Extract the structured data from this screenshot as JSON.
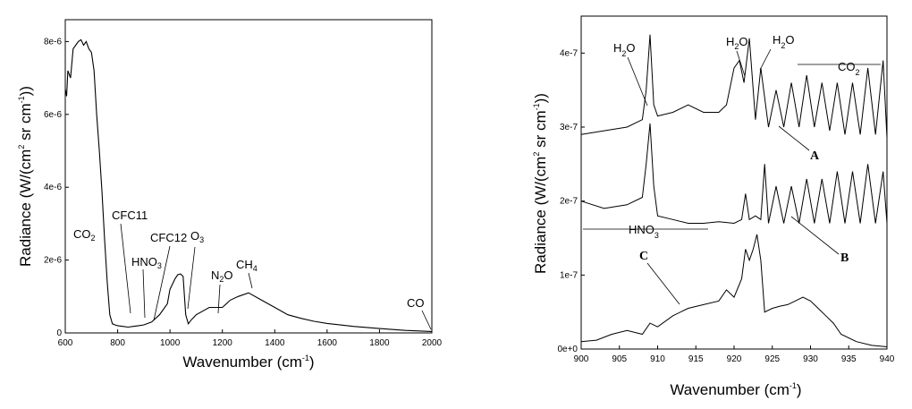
{
  "chart_data": [
    {
      "type": "line",
      "xlabel": "Wavenumber (cm",
      "xlabel_sup": "-1",
      "xlabel_end": ")",
      "ylabel_parts": [
        "Radiance (W/(cm",
        "2",
        " sr cm",
        "-1",
        "))"
      ],
      "xlim": [
        600,
        2000
      ],
      "ylim": [
        0,
        8.6e-06
      ],
      "x_ticks": [
        "600",
        "800",
        "1000",
        "1200",
        "1400",
        "1600",
        "1800",
        "2000"
      ],
      "y_ticks": [
        "0",
        "2e-6",
        "4e-6",
        "6e-6",
        "8e-6"
      ],
      "series": [
        {
          "x": [
            600,
            605,
            610,
            620,
            630,
            640,
            650,
            660,
            670,
            680,
            690,
            700,
            710,
            720,
            730,
            740,
            750,
            760,
            770,
            780,
            790,
            800,
            820,
            840,
            860,
            880,
            900,
            930,
            960,
            990,
            1000,
            1020,
            1030,
            1040,
            1050,
            1060,
            1070,
            1080,
            1100,
            1150,
            1200,
            1230,
            1260,
            1300,
            1350,
            1400,
            1450,
            1500,
            1550,
            1600,
            1700,
            1800,
            1900,
            2000
          ],
          "y": [
            6.7e-06,
            6.5e-06,
            7.2e-06,
            7e-06,
            7.8e-06,
            7.9e-06,
            8e-06,
            8.05e-06,
            7.9e-06,
            8e-06,
            7.8e-06,
            7.7e-06,
            7.2e-06,
            6e-06,
            5e-06,
            3.9e-06,
            2.6e-06,
            1.4e-06,
            5e-07,
            2.5e-07,
            2.2e-07,
            2e-07,
            1.8e-07,
            1.6e-07,
            1.8e-07,
            2e-07,
            2.2e-07,
            3e-07,
            5e-07,
            8e-07,
            1.2e-06,
            1.5e-06,
            1.6e-06,
            1.62e-06,
            1.55e-06,
            5e-07,
            2.5e-07,
            3.5e-07,
            5e-07,
            7e-07,
            7e-07,
            9e-07,
            1e-06,
            1.1e-06,
            9e-07,
            7e-07,
            5e-07,
            4e-07,
            3.2e-07,
            2.6e-07,
            1.8e-07,
            1.2e-07,
            7e-08,
            4e-08
          ]
        }
      ],
      "annotations": [
        {
          "text": "CO",
          "sub": "2"
        },
        {
          "text": "CFC11",
          "sub": ""
        },
        {
          "text": "HNO",
          "sub": "3"
        },
        {
          "text": "CFC12",
          "sub": ""
        },
        {
          "text": "O",
          "sub": "3"
        },
        {
          "text": "N",
          "sub": "2",
          "tail": "O"
        },
        {
          "text": "CH",
          "sub": "4"
        },
        {
          "text": "CO",
          "sub": ""
        }
      ]
    },
    {
      "type": "line",
      "xlabel": "Wavenumber (cm",
      "xlabel_sup": "-1",
      "xlabel_end": ")",
      "ylabel_parts": [
        "Radiance (W/(cm",
        "2",
        " sr cm",
        "-1",
        "))"
      ],
      "xlim": [
        900,
        940
      ],
      "ylim": [
        0,
        4.5e-07
      ],
      "x_ticks": [
        "900",
        "905",
        "910",
        "915",
        "920",
        "925",
        "930",
        "935",
        "940"
      ],
      "y_ticks": [
        "0e+0",
        "1e-7",
        "2e-7",
        "3e-7",
        "4e-7"
      ],
      "series": [
        {
          "name": "A",
          "x": [
            900,
            903,
            906,
            908,
            908.5,
            909,
            909.5,
            910,
            912,
            914,
            916,
            918,
            919,
            920,
            920.7,
            921.3,
            922,
            922.8,
            923.5,
            924.5,
            925.5,
            926.5,
            927.5,
            928.5,
            929.5,
            930.5,
            931.5,
            932.5,
            933.5,
            934.5,
            935.5,
            936.5,
            937.5,
            938.5,
            939.5,
            940
          ],
          "y": [
            2.9e-07,
            2.95e-07,
            3e-07,
            3.1e-07,
            3.5e-07,
            4.25e-07,
            3.3e-07,
            3.15e-07,
            3.2e-07,
            3.3e-07,
            3.2e-07,
            3.2e-07,
            3.3e-07,
            3.8e-07,
            3.9e-07,
            3.6e-07,
            4.2e-07,
            3.1e-07,
            3.8e-07,
            3e-07,
            3.5e-07,
            3e-07,
            3.6e-07,
            3e-07,
            3.7e-07,
            3e-07,
            3.6e-07,
            2.95e-07,
            3.6e-07,
            2.9e-07,
            3.6e-07,
            2.9e-07,
            3.8e-07,
            2.9e-07,
            3.9e-07,
            2.85e-07
          ]
        },
        {
          "name": "B",
          "x": [
            900,
            903,
            906,
            908,
            908.5,
            909,
            909.5,
            910,
            912,
            914,
            916,
            918,
            920,
            921,
            921.5,
            922,
            922.8,
            923.5,
            924,
            924.5,
            925.5,
            926.5,
            927.5,
            928.5,
            929.5,
            930.5,
            931.5,
            932.5,
            933.5,
            934.5,
            935.5,
            936.5,
            937.5,
            938.5,
            939.5,
            940
          ],
          "y": [
            2e-07,
            1.9e-07,
            1.95e-07,
            2.05e-07,
            2.5e-07,
            3.05e-07,
            2.2e-07,
            1.8e-07,
            1.75e-07,
            1.7e-07,
            1.7e-07,
            1.72e-07,
            1.7e-07,
            1.75e-07,
            2.1e-07,
            1.75e-07,
            1.8e-07,
            1.75e-07,
            2.5e-07,
            1.7e-07,
            2.2e-07,
            1.7e-07,
            2.2e-07,
            1.7e-07,
            2.3e-07,
            1.7e-07,
            2.3e-07,
            1.7e-07,
            2.4e-07,
            1.7e-07,
            2.4e-07,
            1.7e-07,
            2.5e-07,
            1.7e-07,
            2.4e-07,
            1.7e-07
          ]
        },
        {
          "name": "C",
          "x": [
            900,
            902,
            904,
            906,
            908,
            909,
            910,
            912,
            914,
            916,
            918,
            919,
            920,
            921,
            921.5,
            922,
            922.5,
            923,
            923.5,
            924,
            925,
            926,
            927,
            928,
            929,
            930,
            931,
            932,
            933,
            934,
            936,
            938,
            940
          ],
          "y": [
            1e-08,
            1.2e-08,
            2e-08,
            2.5e-08,
            2e-08,
            3.5e-08,
            3e-08,
            4.5e-08,
            5.5e-08,
            6e-08,
            6.5e-08,
            8e-08,
            7e-08,
            9.5e-08,
            1.35e-07,
            1.2e-07,
            1.35e-07,
            1.55e-07,
            1.2e-07,
            5e-08,
            5.5e-08,
            5.8e-08,
            6e-08,
            6.5e-08,
            7e-08,
            6.5e-08,
            5.5e-08,
            4.5e-08,
            3.5e-08,
            2e-08,
            1e-08,
            5e-09,
            3e-09
          ]
        }
      ],
      "annotations": [
        {
          "text": "H",
          "sub": "2",
          "tail": "O"
        },
        {
          "text": "H",
          "sub": "2",
          "tail": "O"
        },
        {
          "text": "H",
          "sub": "2",
          "tail": "O"
        },
        {
          "text": "CO",
          "sub": "2"
        },
        {
          "text": "HNO",
          "sub": "3"
        },
        {
          "text": "A",
          "sub": ""
        },
        {
          "text": "B",
          "sub": ""
        },
        {
          "text": "C",
          "sub": ""
        }
      ]
    }
  ]
}
